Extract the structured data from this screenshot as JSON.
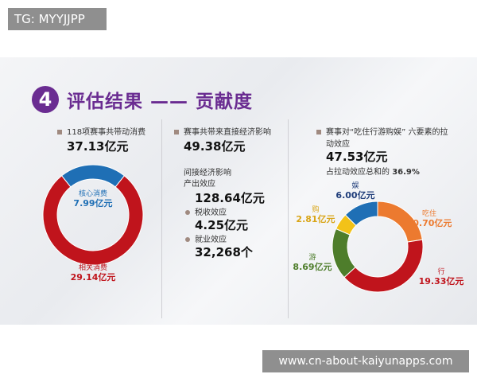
{
  "watermark_top": "TG: MYYJJPP",
  "watermark_bottom": "www.cn-about-kaiyunapps.com",
  "title": {
    "number": "4",
    "text": "评估结果 —— 贡献度"
  },
  "col1": {
    "label": "118项赛事共带动消费",
    "value": "37.13亿元",
    "donut": [
      {
        "name": "核心消费",
        "value": 7.99,
        "label": "7.99亿元",
        "color": "#1f6fb5"
      },
      {
        "name": "相关消费",
        "value": 29.14,
        "label": "29.14亿元",
        "color": "#c0141c"
      }
    ]
  },
  "col2": {
    "label": "赛事共带来直接经济影响",
    "value": "49.38亿元",
    "indirect": "间接经济影响",
    "output_label": "产出效应",
    "output_value": "128.64亿元",
    "tax_label": "税收效应",
    "tax_value": "4.25亿元",
    "jobs_label": "就业效应",
    "jobs_value": "32,268个"
  },
  "col3": {
    "label": "赛事对“吃住行游购娱” 六要素的拉",
    "label2": "动效应",
    "value": "47.53亿元",
    "share_prefix": "占拉动效应总和的",
    "share": "36.9%",
    "donut": [
      {
        "name": "吃住",
        "value": 10.7,
        "label": "10.70亿元",
        "color": "#ec7a2f"
      },
      {
        "name": "行",
        "value": 19.33,
        "label": "19.33亿元",
        "color": "#c0141c"
      },
      {
        "name": "游",
        "value": 8.69,
        "label": "8.69亿元",
        "color": "#4e7d2b"
      },
      {
        "name": "购",
        "value": 2.81,
        "label": "2.81亿元",
        "color": "#f2c218"
      },
      {
        "name": "娱",
        "value": 6.0,
        "label": "6.00亿元",
        "color": "#1f6fb5"
      }
    ]
  }
}
